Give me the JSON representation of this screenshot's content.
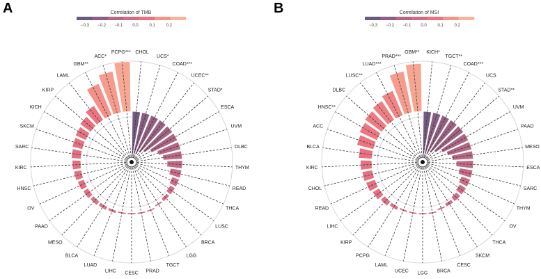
{
  "chart_data": [
    {
      "type": "bar",
      "polar": true,
      "panel_label": "A",
      "legend": {
        "title": "Correlation of TMB",
        "ticks": [
          "-0.3",
          "-0.2",
          "-0.1",
          "0.0",
          "0.1",
          "0.2"
        ],
        "placement": "top"
      },
      "categories": [
        "CHOL",
        "UCS*",
        "COAD***",
        "UCEC**",
        "STAD*",
        "ESCA",
        "UVM",
        "DLBC",
        "THYM",
        "READ",
        "THCA",
        "LUSC",
        "BRCA",
        "LGG",
        "TGCT",
        "PRAD",
        "CESC",
        "LIHC",
        "LUAD",
        "BLCA",
        "MESO",
        "PAAD",
        "OV",
        "HNSC",
        "KIRC",
        "SARC",
        "SKCM",
        "KICH",
        "KIRP",
        "LAML",
        "GBM**",
        "ACC*",
        "PCPG***"
      ],
      "values": [
        -0.33,
        -0.25,
        -0.22,
        -0.2,
        -0.18,
        -0.15,
        -0.12,
        -0.1,
        -0.08,
        -0.06,
        -0.04,
        -0.03,
        -0.02,
        -0.01,
        -0.005,
        0.0,
        0.005,
        0.01,
        0.015,
        0.02,
        0.025,
        0.03,
        0.035,
        0.04,
        0.045,
        0.05,
        0.055,
        0.06,
        0.07,
        0.09,
        0.18,
        0.22,
        0.26
      ],
      "color_range": [
        -0.35,
        0.3
      ]
    },
    {
      "type": "bar",
      "polar": true,
      "panel_label": "B",
      "legend": {
        "title": "Correlation of MSI",
        "ticks": [
          "-0.3",
          "-0.2",
          "-0.1",
          "0.0",
          "0.1",
          "0.2"
        ],
        "placement": "top"
      },
      "categories": [
        "KICH*",
        "TGCT**",
        "COAD***",
        "UCS",
        "STAD**",
        "UVM",
        "PAAD",
        "MESO",
        "ESCA",
        "SARC",
        "THYM",
        "OV",
        "THCA",
        "SKCM",
        "CESC",
        "BRCA",
        "LGG",
        "UCEC",
        "LAML",
        "PCPG",
        "KIRP",
        "LIHC",
        "READ",
        "CHOL",
        "KIRC",
        "BLCA",
        "ACC",
        "HNSC**",
        "DLBC",
        "LUSC**",
        "LUAD***",
        "PRAD***",
        "GBM**"
      ],
      "values": [
        -0.32,
        -0.25,
        -0.22,
        -0.2,
        -0.18,
        -0.15,
        -0.13,
        -0.11,
        -0.09,
        -0.07,
        -0.05,
        -0.04,
        -0.03,
        -0.02,
        -0.01,
        -0.005,
        0.0,
        0.005,
        0.01,
        0.02,
        0.03,
        0.04,
        0.05,
        0.055,
        0.06,
        0.07,
        0.09,
        0.1,
        0.11,
        0.12,
        0.14,
        0.22,
        0.25
      ],
      "color_range": [
        -0.35,
        0.3
      ]
    }
  ],
  "palette": [
    "#6a5a7d",
    "#8c5e82",
    "#b06884",
    "#d06d86",
    "#ec727f",
    "#f3948a",
    "#f9b397"
  ]
}
